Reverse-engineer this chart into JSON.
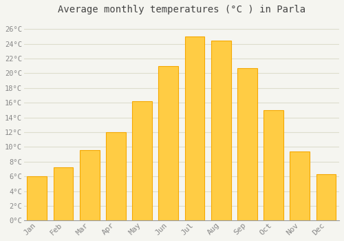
{
  "months": [
    "Jan",
    "Feb",
    "Mar",
    "Apr",
    "May",
    "Jun",
    "Jul",
    "Aug",
    "Sep",
    "Oct",
    "Nov",
    "Dec"
  ],
  "temperatures": [
    6.0,
    7.2,
    9.6,
    12.0,
    16.2,
    21.0,
    25.0,
    24.4,
    20.7,
    15.0,
    9.4,
    6.3
  ],
  "bar_color_center": "#FFCC44",
  "bar_color_edge": "#F5A800",
  "background_color": "#F5F5F0",
  "plot_bg_color": "#F5F5F0",
  "grid_color": "#DDDDCC",
  "title": "Average monthly temperatures (°C ) in Parla",
  "title_fontsize": 10,
  "tick_label_color": "#888888",
  "yticks": [
    0,
    2,
    4,
    6,
    8,
    10,
    12,
    14,
    16,
    18,
    20,
    22,
    24,
    26
  ],
  "ylim": [
    0,
    27.5
  ],
  "figsize": [
    5.0,
    3.5
  ],
  "dpi": 100,
  "bar_width": 0.75
}
